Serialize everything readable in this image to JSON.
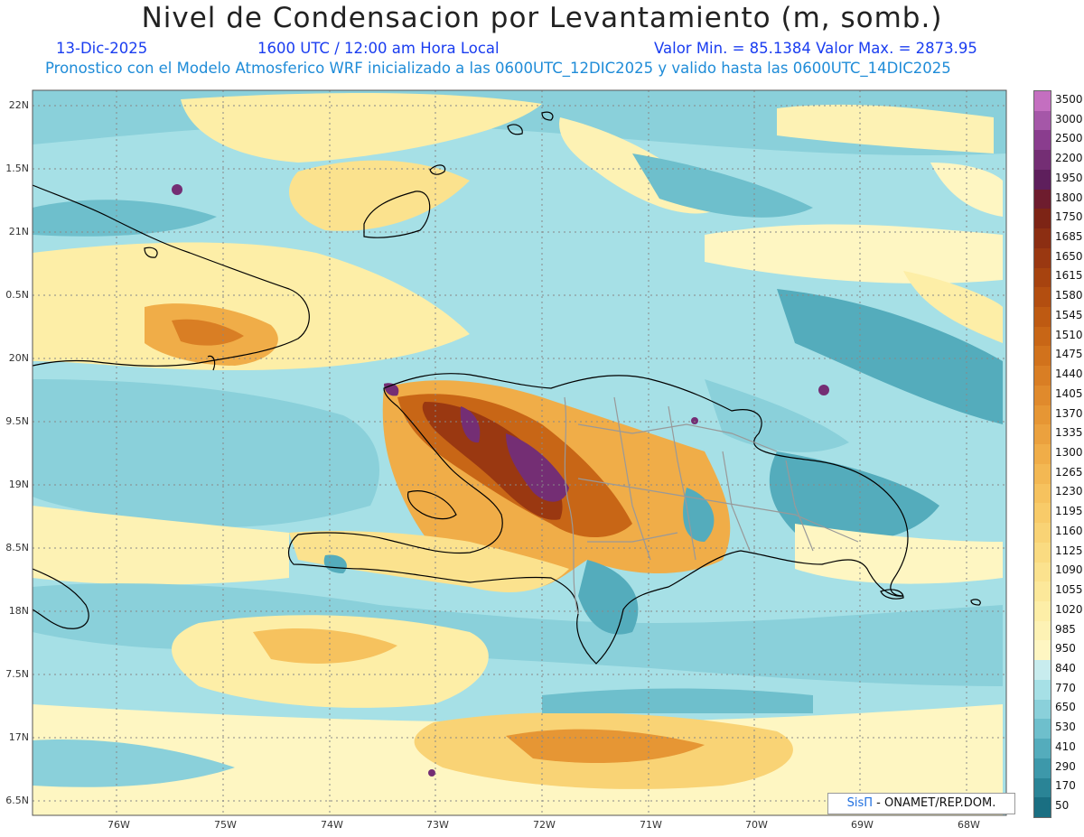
{
  "title": "Nivel de Condensacion por Levantamiento (m, somb.)",
  "date": "13-Dic-2025",
  "time": "1600 UTC / 12:00 am Hora Local",
  "minmax": "Valor Min. = 85.1384  Valor Max. = 2873.95",
  "forecast": "Pronostico con el Modelo Atmosferico WRF inicializado a las 0600UTC_12DIC2025 y valido hasta las  0600UTC_14DIC2025",
  "credit_brand": "SisΠ",
  "credit_text": " - ONAMET/REP.DOM.",
  "lat_labels": [
    "22N",
    "1.5N",
    "21N",
    "0.5N",
    "20N",
    "9.5N",
    "19N",
    "8.5N",
    "18N",
    "7.5N",
    "17N",
    "6.5N"
  ],
  "lon_labels": [
    "76W",
    "75W",
    "74W",
    "73W",
    "72W",
    "71W",
    "70W",
    "69W",
    "68W"
  ],
  "colorbar": {
    "labels": [
      "3500",
      "3000",
      "2500",
      "2200",
      "1950",
      "1800",
      "1750",
      "1685",
      "1650",
      "1615",
      "1580",
      "1545",
      "1510",
      "1475",
      "1440",
      "1405",
      "1370",
      "1335",
      "1300",
      "1265",
      "1230",
      "1195",
      "1160",
      "1125",
      "1090",
      "1055",
      "1020",
      "985",
      "950",
      "840",
      "770",
      "650",
      "530",
      "410",
      "290",
      "170",
      "50"
    ],
    "colors": [
      "#c46fc0",
      "#a557a8",
      "#8a3d8e",
      "#742e74",
      "#5e1f5c",
      "#6e1c2e",
      "#7d2415",
      "#8c2e12",
      "#9a3811",
      "#a7430f",
      "#b34e10",
      "#be5a12",
      "#c86616",
      "#d1721c",
      "#d97e24",
      "#e08a2c",
      "#e69634",
      "#eba13e",
      "#f0ad48",
      "#f3b853",
      "#f6c25e",
      "#f8cb69",
      "#f9d375",
      "#fadb81",
      "#fbe28e",
      "#fce89a",
      "#fdeea7",
      "#fdf2b4",
      "#fef6c2",
      "#c8ecee",
      "#a6e0e6",
      "#8ad0da",
      "#6ebfcc",
      "#54acbc",
      "#3d98aa",
      "#2a8496",
      "#1a6f82"
    ]
  }
}
